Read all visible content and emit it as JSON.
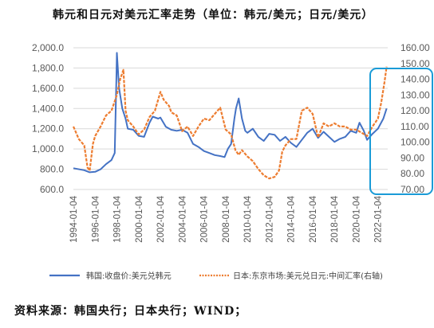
{
  "title": "韩元和日元对美元汇率走势（单位：韩元/美元；日元/美元）",
  "source": "资料来源：韩国央行；日本央行；WIND；",
  "chart_data": {
    "type": "line",
    "title": "韩元和日元对美元汇率走势（单位：韩元/美元；日元/美元）",
    "xlabel": "",
    "ylabel": "",
    "xlim": [
      1994.0,
      2022.9
    ],
    "ylim_left": [
      600,
      2000
    ],
    "ylim_right": [
      70,
      160
    ],
    "left_ticks": [
      "600.0",
      "800.0",
      "1,000.0",
      "1,200.0",
      "1,400.0",
      "1,600.0",
      "1,800.0",
      "2,000.0"
    ],
    "left_tick_values": [
      600,
      800,
      1000,
      1200,
      1400,
      1600,
      1800,
      2000
    ],
    "right_ticks": [
      "70.00",
      "80.00",
      "90.00",
      "100.00",
      "110.00",
      "120.00",
      "130.00",
      "140.00",
      "150.00",
      "160.00"
    ],
    "right_tick_values": [
      70,
      80,
      90,
      100,
      110,
      120,
      130,
      140,
      150,
      160
    ],
    "x_ticks": [
      "1994-01-04",
      "1996-01-04",
      "1998-01-04",
      "2000-01-04",
      "2002-01-04",
      "2004-01-04",
      "2006-01-04",
      "2008-01-04",
      "2010-01-04",
      "2012-01-04",
      "2014-01-04",
      "2016-01-04",
      "2018-01-04",
      "2020-01-04",
      "2022-01-04"
    ],
    "x_tick_values": [
      1994,
      1996,
      1998,
      2000,
      2002,
      2004,
      2006,
      2008,
      2010,
      2012,
      2014,
      2016,
      2018,
      2020,
      2022
    ],
    "grid": true,
    "legend_position": "bottom",
    "highlight_box": "right-axis 2021-2022 region",
    "series": [
      {
        "name": "韩国:收盘价:美元兑韩元",
        "axis": "left",
        "color": "#4472c4",
        "style": "solid",
        "x": [
          1994.0,
          1995.0,
          1995.5,
          1996.0,
          1996.5,
          1997.0,
          1997.5,
          1997.8,
          1997.95,
          1998.0,
          1998.2,
          1998.5,
          1998.8,
          1999.0,
          1999.5,
          2000.0,
          2000.5,
          2001.0,
          2001.3,
          2001.8,
          2002.0,
          2002.5,
          2003.0,
          2003.5,
          2004.0,
          2004.5,
          2005.0,
          2005.5,
          2006.0,
          2006.5,
          2007.0,
          2007.5,
          2007.9,
          2008.2,
          2008.5,
          2008.8,
          2008.95,
          2009.2,
          2009.5,
          2009.8,
          2010.0,
          2010.5,
          2011.0,
          2011.5,
          2012.0,
          2012.5,
          2013.0,
          2013.5,
          2014.0,
          2014.5,
          2015.0,
          2015.5,
          2016.0,
          2016.5,
          2017.0,
          2017.5,
          2018.0,
          2018.5,
          2019.0,
          2019.5,
          2020.0,
          2020.3,
          2020.7,
          2021.0,
          2021.5,
          2022.0,
          2022.5,
          2022.8
        ],
        "values": [
          810,
          790,
          770,
          775,
          800,
          850,
          890,
          960,
          1700,
          1950,
          1600,
          1400,
          1300,
          1200,
          1190,
          1130,
          1120,
          1260,
          1320,
          1300,
          1310,
          1220,
          1190,
          1180,
          1190,
          1160,
          1050,
          1020,
          980,
          960,
          940,
          930,
          920,
          1000,
          1050,
          1300,
          1400,
          1500,
          1300,
          1180,
          1160,
          1200,
          1120,
          1080,
          1150,
          1140,
          1080,
          1120,
          1060,
          1020,
          1090,
          1160,
          1200,
          1110,
          1170,
          1120,
          1070,
          1100,
          1120,
          1180,
          1160,
          1260,
          1180,
          1090,
          1150,
          1200,
          1300,
          1400
        ]
      },
      {
        "name": "日本:东京市场:美元兑日元:中间汇率(右轴)",
        "axis": "right",
        "color": "#ed7d31",
        "style": "dashed",
        "x": [
          1994.0,
          1994.5,
          1995.0,
          1995.3,
          1995.5,
          1995.8,
          1996.0,
          1996.5,
          1997.0,
          1997.5,
          1998.0,
          1998.3,
          1998.6,
          1998.8,
          1999.0,
          1999.5,
          2000.0,
          2000.5,
          2001.0,
          2001.5,
          2002.0,
          2002.3,
          2002.8,
          2003.0,
          2003.5,
          2004.0,
          2004.5,
          2005.0,
          2005.5,
          2006.0,
          2006.5,
          2007.0,
          2007.5,
          2008.0,
          2008.5,
          2008.9,
          2009.2,
          2009.5,
          2010.0,
          2010.5,
          2011.0,
          2011.5,
          2012.0,
          2012.5,
          2012.9,
          2013.2,
          2013.5,
          2014.0,
          2014.5,
          2015.0,
          2015.5,
          2016.0,
          2016.5,
          2017.0,
          2017.5,
          2018.0,
          2018.5,
          2019.0,
          2019.5,
          2020.0,
          2020.5,
          2021.0,
          2021.5,
          2022.0,
          2022.3,
          2022.6,
          2022.8
        ],
        "values": [
          110,
          102,
          98,
          84,
          82,
          99,
          104,
          110,
          117,
          120,
          130,
          140,
          146,
          120,
          114,
          110,
          105,
          108,
          116,
          120,
          132,
          127,
          123,
          119,
          117,
          107,
          110,
          104,
          110,
          115,
          114,
          118,
          122,
          108,
          105,
          95,
          92,
          95,
          91,
          88,
          83,
          79,
          77,
          78,
          82,
          94,
          98,
          102,
          102,
          120,
          122,
          118,
          103,
          112,
          110,
          112,
          110,
          110,
          108,
          108,
          106,
          104,
          110,
          115,
          125,
          138,
          148
        ]
      }
    ]
  }
}
